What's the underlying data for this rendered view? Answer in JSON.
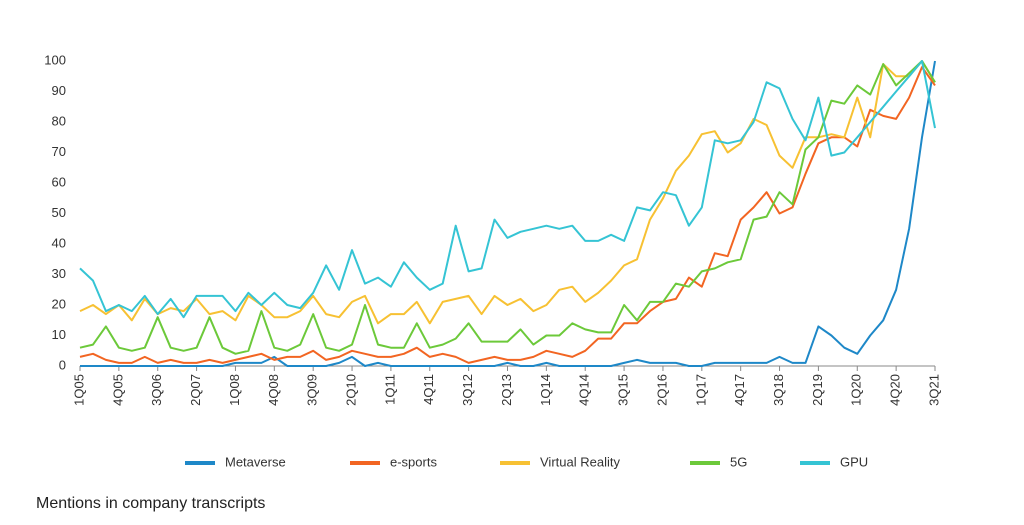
{
  "chart_data": {
    "type": "line",
    "caption": "Mentions in company transcripts",
    "categories": [
      "1Q05",
      null,
      null,
      "4Q05",
      null,
      null,
      "3Q06",
      null,
      null,
      "2Q07",
      null,
      null,
      "1Q08",
      null,
      null,
      "4Q08",
      null,
      null,
      "3Q09",
      null,
      null,
      "2Q10",
      null,
      null,
      "1Q11",
      null,
      null,
      "4Q11",
      null,
      null,
      "3Q12",
      null,
      null,
      "2Q13",
      null,
      null,
      "1Q14",
      null,
      null,
      "4Q14",
      null,
      null,
      "3Q15",
      null,
      null,
      "2Q16",
      null,
      null,
      "1Q17",
      null,
      null,
      "4Q17",
      null,
      null,
      "3Q18",
      null,
      null,
      "2Q19",
      null,
      null,
      "1Q20",
      null,
      null,
      "4Q20",
      null,
      null,
      "3Q21"
    ],
    "series": [
      {
        "name": "Metaverse",
        "color": "#1e88c8",
        "values": [
          0,
          0,
          0,
          0,
          0,
          0,
          0,
          0,
          0,
          0,
          0,
          0,
          1,
          1,
          1,
          3,
          0,
          0,
          0,
          0,
          1,
          3,
          0,
          1,
          0,
          0,
          0,
          0,
          0,
          0,
          0,
          0,
          0,
          1,
          0,
          0,
          1,
          0,
          0,
          0,
          0,
          0,
          1,
          2,
          1,
          1,
          1,
          0,
          0,
          1,
          1,
          1,
          1,
          1,
          3,
          1,
          1,
          13,
          10,
          6,
          4,
          10,
          15,
          25,
          45,
          75,
          100
        ]
      },
      {
        "name": "e-sports",
        "color": "#f26522",
        "values": [
          3,
          4,
          2,
          1,
          1,
          3,
          1,
          2,
          1,
          1,
          2,
          1,
          2,
          3,
          4,
          2,
          3,
          3,
          5,
          2,
          3,
          5,
          4,
          3,
          3,
          4,
          6,
          3,
          4,
          3,
          1,
          2,
          3,
          2,
          2,
          3,
          5,
          4,
          3,
          5,
          9,
          9,
          14,
          14,
          18,
          21,
          22,
          29,
          26,
          37,
          36,
          48,
          52,
          57,
          50,
          52,
          63,
          73,
          75,
          75,
          72,
          84,
          82,
          81,
          88,
          98,
          92
        ]
      },
      {
        "name": "Virtual Reality",
        "color": "#f7c133",
        "values": [
          18,
          20,
          17,
          20,
          15,
          22,
          17,
          19,
          18,
          22,
          17,
          18,
          15,
          23,
          20,
          16,
          16,
          18,
          23,
          17,
          16,
          21,
          23,
          14,
          17,
          17,
          21,
          14,
          21,
          22,
          23,
          17,
          23,
          20,
          22,
          18,
          20,
          25,
          26,
          21,
          24,
          28,
          33,
          35,
          48,
          55,
          64,
          69,
          76,
          77,
          70,
          73,
          81,
          79,
          69,
          65,
          75,
          75,
          76,
          75,
          88,
          75,
          99,
          95,
          95,
          100,
          93
        ]
      },
      {
        "name": "5G",
        "color": "#6cc93a",
        "values": [
          6,
          7,
          13,
          6,
          5,
          6,
          16,
          6,
          5,
          6,
          16,
          6,
          4,
          5,
          18,
          6,
          5,
          7,
          17,
          6,
          5,
          7,
          20,
          7,
          6,
          6,
          14,
          6,
          7,
          9,
          14,
          8,
          8,
          8,
          12,
          7,
          10,
          10,
          14,
          12,
          11,
          11,
          20,
          15,
          21,
          21,
          27,
          26,
          31,
          32,
          34,
          35,
          48,
          49,
          57,
          53,
          71,
          75,
          87,
          86,
          92,
          89,
          99,
          92,
          96,
          100,
          93
        ]
      },
      {
        "name": "GPU",
        "color": "#35c4d4",
        "values": [
          32,
          28,
          18,
          20,
          18,
          23,
          17,
          22,
          16,
          23,
          23,
          23,
          18,
          24,
          20,
          24,
          20,
          19,
          24,
          33,
          25,
          38,
          27,
          29,
          26,
          34,
          29,
          25,
          27,
          46,
          31,
          32,
          48,
          42,
          44,
          45,
          46,
          45,
          46,
          41,
          41,
          43,
          41,
          52,
          51,
          57,
          56,
          46,
          52,
          74,
          73,
          74,
          80,
          93,
          91,
          81,
          74,
          88,
          69,
          70,
          75,
          80,
          85,
          90,
          95,
          100,
          78
        ]
      }
    ],
    "ylim": [
      0,
      100
    ],
    "yticks": [
      0,
      10,
      20,
      30,
      40,
      50,
      60,
      70,
      80,
      90,
      100
    ]
  }
}
